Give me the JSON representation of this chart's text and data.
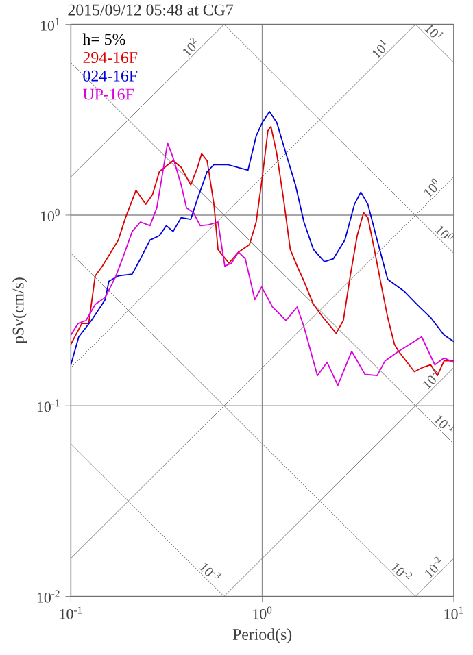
{
  "chart_data": {
    "type": "line",
    "title": "2015/09/12 05:48 at CG7",
    "xlabel": "Period(s)",
    "ylabel": "pSv(cm/s)",
    "log": "xy",
    "grid": true,
    "legend": "top left",
    "line_style": "solid",
    "xlim": [
      0.1,
      10
    ],
    "ylim": [
      0.01,
      10
    ],
    "xticks": [
      {
        "value": 0.1,
        "label": "10$^{-1}$"
      },
      {
        "value": 1,
        "label": "10$^{0}$"
      },
      {
        "value": 10,
        "label": "10$^{1}$"
      }
    ],
    "yticks": [
      {
        "value": 0.01,
        "label": "10$^{-2}$"
      },
      {
        "value": 0.1,
        "label": "10$^{-1}$"
      },
      {
        "value": 1,
        "label": "10$^{0}$"
      },
      {
        "value": 10,
        "label": "10$^{1}$"
      }
    ],
    "annotations": [
      "h= 5%",
      {
        "text": "10$^{2}$",
        "x": 0.45,
        "y": 7.13
      },
      {
        "text": "10$^{1}$",
        "x": 4.4,
        "y": 6.97
      },
      {
        "text": "10$^{0}$",
        "x": 8.2,
        "y": 1.3
      },
      {
        "text": "10$^{-1}$",
        "x": 8.2,
        "y": 0.13
      },
      {
        "text": "10$^{-2}$",
        "x": 8.4,
        "y": 0.0133
      },
      {
        "text": "10$^{1}$",
        "x": 7.4,
        "y": 8.53
      },
      {
        "text": "10$^{0}$",
        "x": 8.4,
        "y": 0.751
      },
      {
        "text": "10$^{-1}$",
        "x": 8.4,
        "y": 0.0751
      },
      {
        "text": "10$^{-2}$",
        "x": 5.0,
        "y": 0.0126
      },
      {
        "text": "10$^{-3}$",
        "x": 0.5,
        "y": 0.0126
      }
    ],
    "series": [
      {
        "color": "#808080",
        "x": [
          0.1,
          0.631
        ],
        "values": [
          1.585,
          10
        ]
      },
      {
        "color": "#808080",
        "x": [
          0.1,
          6.31
        ],
        "values": [
          0.1585,
          10
        ]
      },
      {
        "color": "#808080",
        "x": [
          0.1,
          10
        ],
        "values": [
          0.01585,
          1.585
        ]
      },
      {
        "color": "#808080",
        "x": [
          0.631,
          10
        ],
        "values": [
          0.01,
          0.1585
        ]
      },
      {
        "color": "#808080",
        "x": [
          6.31,
          10
        ],
        "values": [
          0.01,
          0.01585
        ]
      },
      {
        "color": "#808080",
        "x": [
          6.31,
          10
        ],
        "values": [
          10,
          6.31
        ]
      },
      {
        "color": "#808080",
        "x": [
          0.631,
          10
        ],
        "values": [
          10,
          0.631
        ]
      },
      {
        "color": "#808080",
        "x": [
          0.1,
          10
        ],
        "values": [
          6.31,
          0.0631
        ]
      },
      {
        "color": "#808080",
        "x": [
          0.1,
          6.31
        ],
        "values": [
          0.631,
          0.01
        ]
      },
      {
        "color": "#808080",
        "x": [
          0.1,
          0.631
        ],
        "values": [
          0.0631,
          0.01
        ]
      },
      {
        "name": "294-16F",
        "color": "#dd0000",
        "x": [
          0.1,
          0.114,
          0.124,
          0.134,
          0.146,
          0.177,
          0.193,
          0.219,
          0.246,
          0.267,
          0.29,
          0.342,
          0.377,
          0.423,
          0.459,
          0.482,
          0.515,
          0.559,
          0.587,
          0.669,
          0.751,
          0.857,
          0.929,
          1.0,
          1.07,
          1.11,
          1.19,
          1.29,
          1.4,
          1.52,
          1.65,
          1.85,
          2.08,
          2.43,
          2.65,
          2.88,
          3.13,
          3.38,
          3.56,
          3.85,
          4.18,
          4.52,
          4.9,
          5.15,
          6.23,
          6.8,
          7.58,
          8.22,
          8.9,
          10
        ],
        "values": [
          0.21,
          0.27,
          0.27,
          0.48,
          0.54,
          0.74,
          0.97,
          1.35,
          1.14,
          1.28,
          1.69,
          1.93,
          1.78,
          1.44,
          1.78,
          2.1,
          1.93,
          1.14,
          0.66,
          0.56,
          0.64,
          0.7,
          0.92,
          1.58,
          2.77,
          2.91,
          2.1,
          1.22,
          0.66,
          0.54,
          0.45,
          0.34,
          0.29,
          0.24,
          0.28,
          0.48,
          0.78,
          1.03,
          0.97,
          0.66,
          0.43,
          0.29,
          0.21,
          0.193,
          0.151,
          0.158,
          0.164,
          0.144,
          0.172,
          0.172
        ]
      },
      {
        "name": "024-16F",
        "color": "#0000dd",
        "x": [
          0.1,
          0.11,
          0.128,
          0.151,
          0.158,
          0.177,
          0.209,
          0.231,
          0.259,
          0.29,
          0.315,
          0.342,
          0.377,
          0.423,
          0.459,
          0.515,
          0.559,
          0.658,
          0.842,
          0.929,
          1.0,
          1.09,
          1.19,
          1.33,
          1.49,
          1.65,
          1.85,
          2.11,
          2.35,
          2.7,
          3.03,
          3.27,
          3.56,
          3.98,
          4.52,
          5.49,
          6.43,
          7.58,
          8.9,
          10
        ],
        "values": [
          0.164,
          0.23,
          0.28,
          0.36,
          0.45,
          0.48,
          0.49,
          0.59,
          0.74,
          0.78,
          0.88,
          0.82,
          0.97,
          0.95,
          1.22,
          1.69,
          1.84,
          1.84,
          1.72,
          2.6,
          3.06,
          3.49,
          3.06,
          2.1,
          1.44,
          0.92,
          0.66,
          0.57,
          0.59,
          0.74,
          1.14,
          1.32,
          1.14,
          0.74,
          0.46,
          0.4,
          0.34,
          0.29,
          0.235,
          0.217
        ]
      },
      {
        "name": "UP-16F",
        "color": "#dd00dd",
        "x": [
          0.1,
          0.109,
          0.12,
          0.134,
          0.151,
          0.163,
          0.172,
          0.186,
          0.209,
          0.231,
          0.259,
          0.281,
          0.299,
          0.32,
          0.342,
          0.377,
          0.402,
          0.437,
          0.474,
          0.524,
          0.587,
          0.637,
          0.691,
          0.751,
          0.815,
          0.914,
          0.992,
          1.13,
          1.33,
          1.52,
          1.65,
          1.94,
          2.18,
          2.48,
          2.93,
          3.44,
          3.98,
          4.38,
          5.15,
          6.8,
          7.96,
          8.9,
          10
        ],
        "values": [
          0.235,
          0.27,
          0.28,
          0.34,
          0.37,
          0.43,
          0.48,
          0.59,
          0.82,
          0.92,
          0.88,
          1.09,
          1.58,
          2.39,
          2.0,
          1.44,
          1.09,
          1.03,
          0.88,
          0.89,
          0.92,
          0.54,
          0.56,
          0.64,
          0.59,
          0.36,
          0.42,
          0.33,
          0.28,
          0.33,
          0.26,
          0.144,
          0.169,
          0.128,
          0.193,
          0.146,
          0.144,
          0.172,
          0.193,
          0.23,
          0.164,
          0.178,
          0.169
        ]
      }
    ]
  }
}
